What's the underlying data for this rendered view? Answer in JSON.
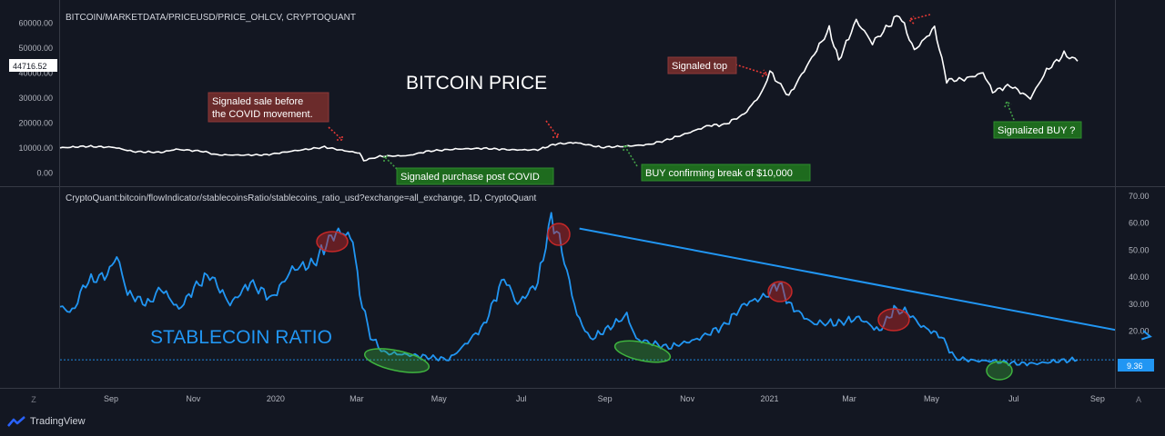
{
  "price_header": "BITCOIN/MARKETDATA/PRICEUSD/PRICE_OHLCV, CRYPTOQUANT",
  "ratio_header": "CryptoQuant:bitcoin/flowIndicator/stablecoinsRatio/stablecoins_ratio_usd?exchange=all_exchange, 1D, CryptoQuant",
  "watermarks": {
    "price": "BITCOIN PRICE",
    "ratio": "STABLECOIN RATIO"
  },
  "brand": "TradingView",
  "corner_buttons": {
    "left": "Z",
    "right": "A"
  },
  "colors": {
    "background": "#131722",
    "price_line": "#ffffff",
    "ratio_line": "#2196f3",
    "red_note": "#6b2b2b",
    "green_note": "#1e6b1e"
  },
  "chart_data": [
    {
      "type": "line",
      "title": "BITCOIN/MARKETDATA/PRICEUSD/PRICE_OHLCV, CRYPTOQUANT",
      "x_ticks": [
        "Sep",
        "Nov",
        "2020",
        "Mar",
        "May",
        "Jul",
        "Sep",
        "Nov",
        "2021",
        "Mar",
        "May",
        "Jul",
        "Sep"
      ],
      "y_ticks": [
        "60000.00",
        "50000.00",
        "40000.00",
        "30000.00",
        "20000.00",
        "10000.00",
        "0.00"
      ],
      "ylim": [
        -5000,
        67000
      ],
      "last_value_label": "44716.52",
      "x_range": [
        "2019-08-01",
        "2021-09-20"
      ],
      "series": [
        {
          "points": [
            [
              "2019-08-01",
              10000
            ],
            [
              "2019-08-20",
              10600
            ],
            [
              "2019-09-10",
              10200
            ],
            [
              "2019-09-24",
              8500
            ],
            [
              "2019-10-15",
              8200
            ],
            [
              "2019-10-26",
              9400
            ],
            [
              "2019-11-15",
              8600
            ],
            [
              "2019-11-25",
              7200
            ],
            [
              "2019-12-15",
              7100
            ],
            [
              "2020-01-01",
              7200
            ],
            [
              "2020-01-20",
              8700
            ],
            [
              "2020-02-13",
              10300
            ],
            [
              "2020-02-26",
              9000
            ],
            [
              "2020-03-10",
              7900
            ],
            [
              "2020-03-13",
              4900
            ],
            [
              "2020-03-25",
              6600
            ],
            [
              "2020-04-15",
              6900
            ],
            [
              "2020-04-30",
              8700
            ],
            [
              "2020-05-20",
              9500
            ],
            [
              "2020-06-10",
              9800
            ],
            [
              "2020-07-01",
              9200
            ],
            [
              "2020-07-20",
              9200
            ],
            [
              "2020-08-02",
              11500
            ],
            [
              "2020-08-17",
              12100
            ],
            [
              "2020-09-05",
              10200
            ],
            [
              "2020-09-25",
              10700
            ],
            [
              "2020-10-10",
              11300
            ],
            [
              "2020-10-22",
              12900
            ],
            [
              "2020-11-06",
              15500
            ],
            [
              "2020-11-24",
              19000
            ],
            [
              "2020-12-05",
              19200
            ],
            [
              "2020-12-20",
              23500
            ],
            [
              "2021-01-02",
              32000
            ],
            [
              "2021-01-08",
              40500
            ],
            [
              "2021-01-22",
              30800
            ],
            [
              "2021-02-08",
              46000
            ],
            [
              "2021-02-21",
              57500
            ],
            [
              "2021-02-28",
              45000
            ],
            [
              "2021-03-13",
              61000
            ],
            [
              "2021-03-25",
              52000
            ],
            [
              "2021-04-14",
              63500
            ],
            [
              "2021-04-25",
              49000
            ],
            [
              "2021-05-10",
              58000
            ],
            [
              "2021-05-19",
              37000
            ],
            [
              "2021-06-01",
              37500
            ],
            [
              "2021-06-15",
              40000
            ],
            [
              "2021-06-22",
              32500
            ],
            [
              "2021-07-05",
              35000
            ],
            [
              "2021-07-20",
              29800
            ],
            [
              "2021-08-01",
              41000
            ],
            [
              "2021-08-14",
              47500
            ],
            [
              "2021-08-24",
              44716
            ]
          ]
        }
      ],
      "annotations": [
        {
          "text": [
            "Signaled sale before",
            "the COVID movement."
          ],
          "style": "red"
        },
        {
          "text": [
            "Signaled purchase post COVID"
          ],
          "style": "green"
        },
        {
          "text": [
            "BUY confirming break of $10,000"
          ],
          "style": "green"
        },
        {
          "text": [
            "Signaled top"
          ],
          "style": "red"
        },
        {
          "text": [
            "Signalized BUY ?"
          ],
          "style": "green"
        }
      ]
    },
    {
      "type": "line",
      "title": "CryptoQuant:bitcoin/flowIndicator/stablecoinsRatio/stablecoins_ratio_usd?exchange=all_exchange, 1D, CryptoQuant",
      "y_ticks": [
        "70.00",
        "60.00",
        "50.00",
        "40.00",
        "30.00",
        "20.00"
      ],
      "ylim": [
        0,
        73
      ],
      "reference_line": 9.36,
      "last_value_label": "9.36",
      "series": [
        {
          "points": [
            [
              "2019-08-01",
              29
            ],
            [
              "2019-08-10",
              27
            ],
            [
              "2019-08-20",
              38
            ],
            [
              "2019-09-05",
              41
            ],
            [
              "2019-09-12",
              48
            ],
            [
              "2019-09-20",
              34
            ],
            [
              "2019-10-05",
              30
            ],
            [
              "2019-10-15",
              36
            ],
            [
              "2019-10-28",
              28
            ],
            [
              "2019-11-10",
              37
            ],
            [
              "2019-11-20",
              41
            ],
            [
              "2019-12-05",
              30
            ],
            [
              "2019-12-20",
              38
            ],
            [
              "2020-01-05",
              32
            ],
            [
              "2020-01-20",
              43
            ],
            [
              "2020-02-05",
              45
            ],
            [
              "2020-02-18",
              55
            ],
            [
              "2020-02-25",
              57
            ],
            [
              "2020-03-05",
              54
            ],
            [
              "2020-03-10",
              34
            ],
            [
              "2020-03-18",
              18
            ],
            [
              "2020-03-28",
              12
            ],
            [
              "2020-04-20",
              11
            ],
            [
              "2020-05-15",
              9.5
            ],
            [
              "2020-05-25",
              14
            ],
            [
              "2020-06-10",
              22
            ],
            [
              "2020-06-25",
              40
            ],
            [
              "2020-07-05",
              30
            ],
            [
              "2020-07-20",
              38
            ],
            [
              "2020-07-30",
              62
            ],
            [
              "2020-08-05",
              54
            ],
            [
              "2020-08-18",
              26
            ],
            [
              "2020-08-28",
              17
            ],
            [
              "2020-09-10",
              21
            ],
            [
              "2020-09-24",
              26
            ],
            [
              "2020-10-01",
              17
            ],
            [
              "2020-10-25",
              14
            ],
            [
              "2020-11-15",
              17
            ],
            [
              "2020-12-05",
              22
            ],
            [
              "2020-12-20",
              30
            ],
            [
              "2021-01-05",
              33
            ],
            [
              "2021-01-15",
              38
            ],
            [
              "2021-01-22",
              30
            ],
            [
              "2021-02-08",
              23
            ],
            [
              "2021-02-28",
              23
            ],
            [
              "2021-03-15",
              25
            ],
            [
              "2021-03-30",
              20
            ],
            [
              "2021-04-10",
              28
            ],
            [
              "2021-04-20",
              27
            ],
            [
              "2021-04-30",
              22
            ],
            [
              "2021-05-15",
              18
            ],
            [
              "2021-05-25",
              10
            ],
            [
              "2021-06-10",
              9
            ],
            [
              "2021-06-20",
              9
            ],
            [
              "2021-07-10",
              8
            ],
            [
              "2021-07-25",
              8
            ],
            [
              "2021-08-10",
              9
            ],
            [
              "2021-08-24",
              9.4
            ]
          ]
        }
      ],
      "trendline": [
        [
          "2020-08-01",
          58
        ],
        [
          "2021-09-01",
          18
        ]
      ],
      "annotations": [
        "STABLECOIN RATIO"
      ]
    }
  ]
}
